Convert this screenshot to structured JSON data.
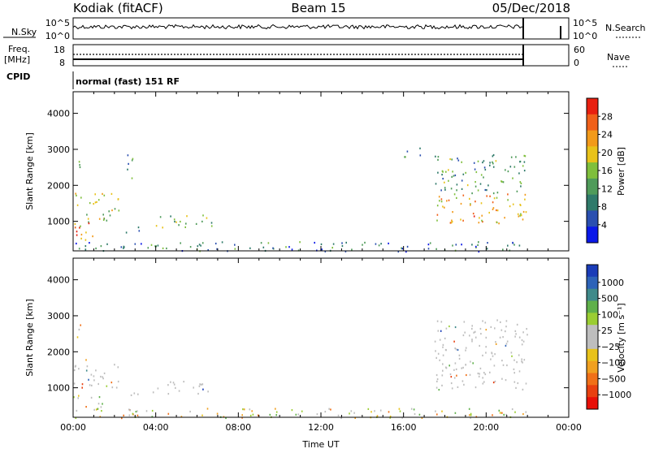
{
  "header": {
    "station": "Kodiak (fitACF)",
    "beam": "Beam 15",
    "date": "05/Dec/2018"
  },
  "top_panels": {
    "nsky": {
      "label": "N.Sky",
      "tick_top": "10^5",
      "tick_bottom": "10^0"
    },
    "nsearch": {
      "label": "N.Search",
      "tick_top": "10^5",
      "tick_bottom": "10^0"
    },
    "freq": {
      "label_line1": "Freq.",
      "label_line2": "[MHz]",
      "tick_top": "18",
      "tick_bottom": "8"
    },
    "nave": {
      "label": "Nave",
      "tick_top": "60",
      "tick_bottom": "0"
    },
    "cpid": {
      "label": "CPID",
      "value": "normal (fast) 151 RF"
    }
  },
  "colors": {
    "frame": "#000000",
    "background": "#ffffff",
    "ground_scatter": "#bebebe"
  },
  "chart_data": [
    {
      "type": "heatmap",
      "panel": "power",
      "ylabel": "Slant Range [km]",
      "xlabel": "",
      "xlim": [
        0,
        24
      ],
      "ylim": [
        180,
        4600
      ],
      "yticks": [
        "1000",
        "2000",
        "3000",
        "4000"
      ],
      "colorbar": {
        "label": "Power [dB]",
        "range": [
          0,
          32
        ],
        "ticks": [
          "4",
          "8",
          "12",
          "16",
          "20",
          "24",
          "28"
        ],
        "colors": [
          "#0a18e8",
          "#2a4fb0",
          "#2f7a6a",
          "#4f9b5a",
          "#7fbf3c",
          "#e8c21a",
          "#f29a1a",
          "#f0601a",
          "#e82010"
        ]
      },
      "regions": [
        {
          "t": [
            0.0,
            2.2
          ],
          "r": [
            1000,
            1800
          ],
          "level": 0.55
        },
        {
          "t": [
            0.0,
            1.4
          ],
          "r": [
            500,
            1000
          ],
          "level": 0.8
        },
        {
          "t": [
            2.4,
            3.2
          ],
          "r": [
            700,
            900
          ],
          "level": 0.35
        },
        {
          "t": [
            3.8,
            6.8
          ],
          "r": [
            850,
            1200
          ],
          "level": 0.45
        },
        {
          "t": [
            0.0,
            0.4
          ],
          "r": [
            2400,
            2800
          ],
          "level": 0.3
        },
        {
          "t": [
            2.6,
            3.1
          ],
          "r": [
            2200,
            2900
          ],
          "level": 0.3
        },
        {
          "t": [
            0.0,
            22.0
          ],
          "r": [
            180,
            450
          ],
          "level": 0.25
        },
        {
          "t": [
            17.5,
            22.0
          ],
          "r": [
            950,
            1800
          ],
          "level": 0.7
        },
        {
          "t": [
            17.5,
            22.0
          ],
          "r": [
            1800,
            2900
          ],
          "level": 0.35
        },
        {
          "t": [
            16.0,
            17.0
          ],
          "r": [
            2800,
            3100
          ],
          "level": 0.3
        }
      ]
    },
    {
      "type": "heatmap",
      "panel": "velocity",
      "ylabel": "Slant Range [km]",
      "xlabel": "Time UT",
      "xlim": [
        0,
        24
      ],
      "ylim": [
        180,
        4600
      ],
      "yticks": [
        "1000",
        "2000",
        "3000",
        "4000"
      ],
      "xticks": [
        "00:00",
        "04:00",
        "08:00",
        "12:00",
        "16:00",
        "20:00",
        "00:00"
      ],
      "colorbar": {
        "label": "Velocity [m s⁻¹]",
        "ticks": [
          "1000",
          "500",
          "100",
          "25",
          "−25",
          "−100",
          "−500",
          "−1000"
        ],
        "colors": [
          "#1a3cb8",
          "#2d63b8",
          "#3f8a8a",
          "#5fb04a",
          "#9acd32",
          "#bebebe",
          "#bebebe",
          "#e8c21a",
          "#f0a020",
          "#f07018",
          "#e84010",
          "#e81008"
        ]
      },
      "regions": [
        {
          "t": [
            0.0,
            2.2
          ],
          "r": [
            1000,
            1800
          ],
          "kind": "ground"
        },
        {
          "t": [
            0.0,
            1.4
          ],
          "r": [
            400,
            900
          ],
          "kind": "ionos"
        },
        {
          "t": [
            2.4,
            3.2
          ],
          "r": [
            700,
            900
          ],
          "kind": "ground"
        },
        {
          "t": [
            3.8,
            6.8
          ],
          "r": [
            850,
            1200
          ],
          "kind": "ground"
        },
        {
          "t": [
            0.0,
            0.4
          ],
          "r": [
            2400,
            2800
          ],
          "kind": "ionos"
        },
        {
          "t": [
            0.0,
            22.0
          ],
          "r": [
            180,
            450
          ],
          "kind": "ionos"
        },
        {
          "t": [
            17.5,
            22.0
          ],
          "r": [
            950,
            1800
          ],
          "kind": "ground"
        },
        {
          "t": [
            17.5,
            22.0
          ],
          "r": [
            1800,
            2900
          ],
          "kind": "ground"
        }
      ]
    }
  ]
}
